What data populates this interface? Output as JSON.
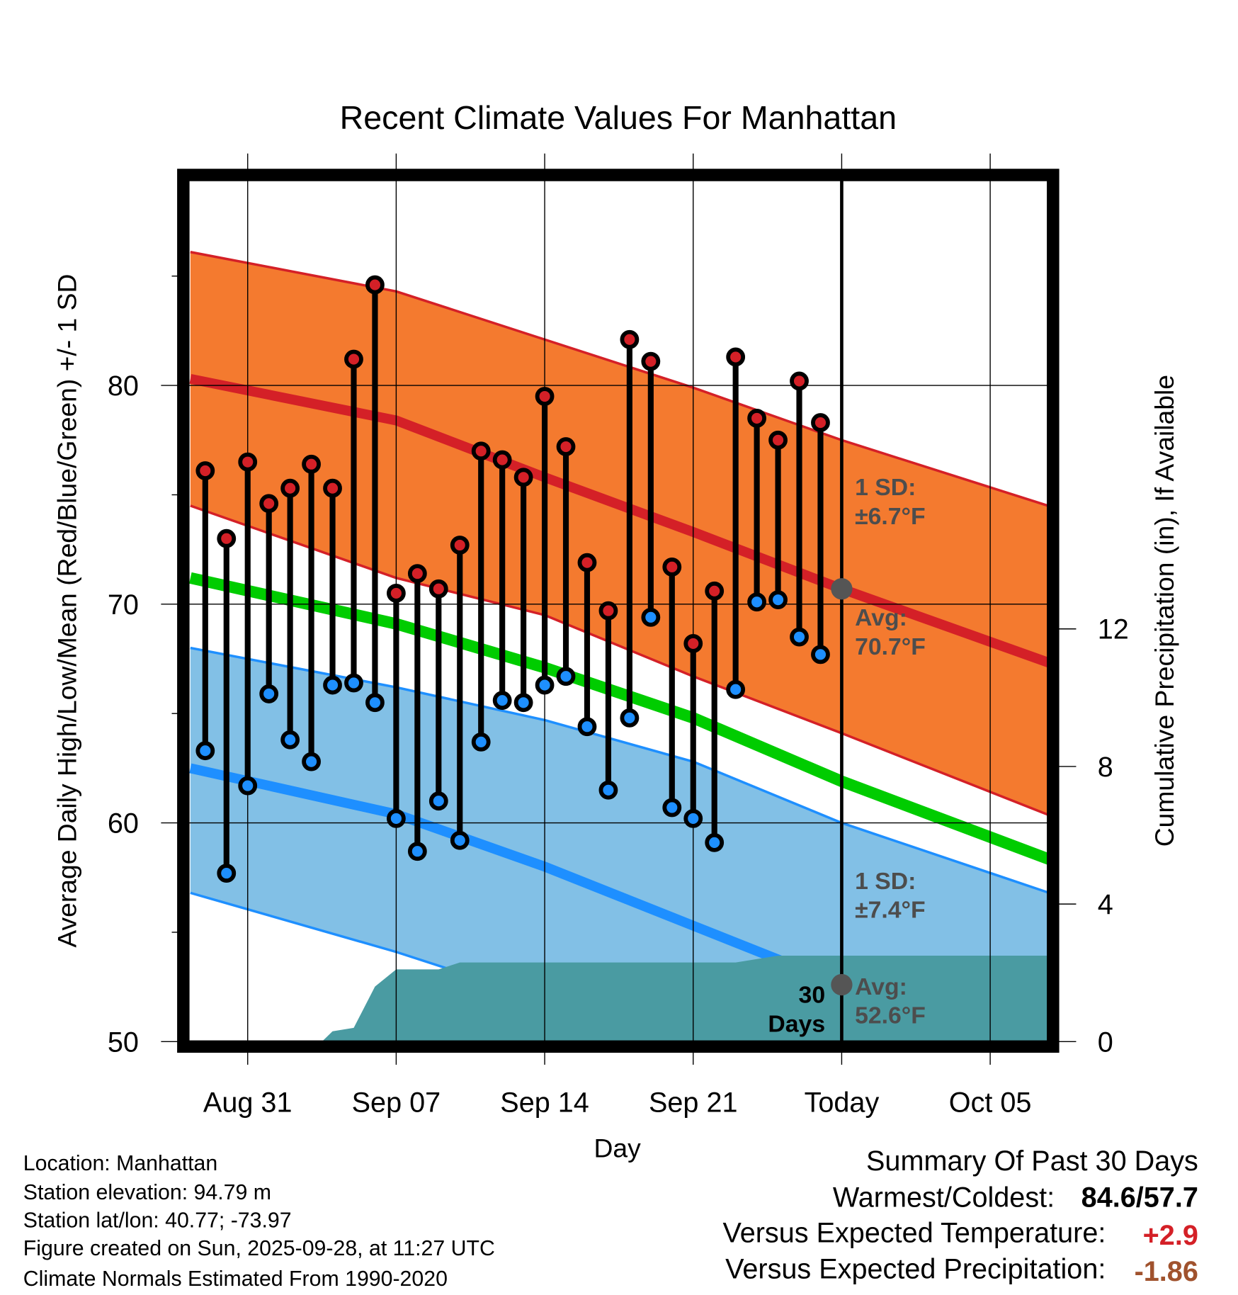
{
  "chart_data": {
    "type": "line",
    "title": "Recent Climate Values For Manhattan",
    "xlabel": "Day",
    "ylabel": "Average Daily High/Low/Mean (Red/Blue/Green) +/- 1 SD",
    "y2label": "Cumulative Precipitation (in), If Available",
    "x_unit": "days since Aug 31",
    "xlim": [
      -2.7,
      38.7
    ],
    "ylim": [
      50,
      89.7
    ],
    "y2lim": [
      0,
      12.1
    ],
    "grid": true,
    "x_ticks": [
      {
        "value": 0,
        "label": "Aug 31"
      },
      {
        "value": 7,
        "label": "Sep 07"
      },
      {
        "value": 14,
        "label": "Sep 14"
      },
      {
        "value": 21,
        "label": "Sep 21"
      },
      {
        "value": 28,
        "label": "Today"
      },
      {
        "value": 35,
        "label": "Oct 05"
      }
    ],
    "y_ticks": [
      50,
      60,
      70,
      80
    ],
    "y2_ticks": [
      0,
      4,
      8,
      12
    ],
    "today": 28,
    "daily": {
      "x": [
        -2,
        -1,
        0,
        1,
        2,
        3,
        4,
        5,
        6,
        7,
        8,
        9,
        10,
        11,
        12,
        13,
        14,
        15,
        16,
        17,
        18,
        19,
        20,
        21,
        22,
        23,
        24,
        25,
        26,
        27
      ],
      "high": [
        76.1,
        73.0,
        76.5,
        74.6,
        75.3,
        76.4,
        75.3,
        81.2,
        84.6,
        70.5,
        71.4,
        70.7,
        72.7,
        77.0,
        76.6,
        75.8,
        79.5,
        77.2,
        71.9,
        69.7,
        82.1,
        81.1,
        71.7,
        68.2,
        70.6,
        81.3,
        78.5,
        77.5,
        80.2,
        78.3
      ],
      "low": [
        63.3,
        57.7,
        61.7,
        65.9,
        63.8,
        62.8,
        66.3,
        66.4,
        65.5,
        60.2,
        58.7,
        61.0,
        59.2,
        63.7,
        65.6,
        65.5,
        66.3,
        66.7,
        64.4,
        61.5,
        64.8,
        69.4,
        60.7,
        60.2,
        59.1,
        66.1,
        70.1,
        70.2,
        68.5,
        67.7
      ]
    },
    "normals": {
      "x": [
        -2.7,
        7,
        14,
        21,
        28,
        38.7
      ],
      "avg_high": [
        80.3,
        78.4,
        75.8,
        73.3,
        70.7,
        67.0
      ],
      "high_upper": [
        86.1,
        84.3,
        82.1,
        79.9,
        77.5,
        74.2
      ],
      "high_lower": [
        74.5,
        71.2,
        69.5,
        66.7,
        64.1,
        60.0
      ],
      "mean": [
        71.2,
        69.1,
        67.1,
        64.8,
        61.9,
        58.0
      ],
      "avg_low": [
        62.5,
        60.4,
        58.0,
        55.3,
        52.6,
        49.8
      ],
      "low_upper": [
        68.0,
        66.2,
        64.7,
        62.8,
        60.0,
        56.5
      ],
      "low_lower": [
        56.8,
        54.1,
        51.9,
        49.2,
        46.5,
        43.0
      ]
    },
    "precip": {
      "x": [
        -2.7,
        3.5,
        4,
        5,
        6,
        7,
        9,
        10,
        23,
        25,
        38.7
      ],
      "cumulative": [
        0,
        0,
        0.3,
        0.4,
        1.6,
        2.1,
        2.1,
        2.3,
        2.3,
        2.5,
        2.5
      ]
    },
    "annotations": {
      "high_sd": [
        "1 SD:",
        "±6.7°F"
      ],
      "high_avg": [
        "Avg:",
        "70.7°F"
      ],
      "high_avg_value": 70.7,
      "low_sd": [
        "1 SD:",
        "±7.4°F"
      ],
      "low_avg": [
        "Avg:",
        "52.6°F"
      ],
      "low_avg_value": 52.6,
      "days": [
        "30",
        "Days"
      ]
    },
    "colors": {
      "high_band": "#F47A2F",
      "high_line": "#D42027",
      "low_band": "#82C0E6",
      "low_line": "#1E8FFF",
      "mean_line": "#00CC00",
      "precip": "#4A9BA2",
      "high_dot": "#D42027",
      "low_dot": "#1E8FFF",
      "marker": "#555555"
    }
  },
  "footer": {
    "location": "Location: Manhattan",
    "elevation": "Station elevation: 94.79 m",
    "latlon": "Station lat/lon: 40.77; -73.97",
    "created": "Figure created on Sun, 2025-09-28, at 11:27 UTC",
    "normals": "Climate Normals Estimated From 1990-2020"
  },
  "summary": {
    "title": "Summary Of Past 30 Days",
    "warmest_label": "Warmest/Coldest:",
    "warmest_value": "84.6/57.7",
    "temp_label": "Versus Expected Temperature:",
    "temp_value": "+2.9",
    "temp_color": "#D42027",
    "precip_label": "Versus Expected Precipitation:",
    "precip_value": "-1.86",
    "precip_color": "#A0522D"
  }
}
